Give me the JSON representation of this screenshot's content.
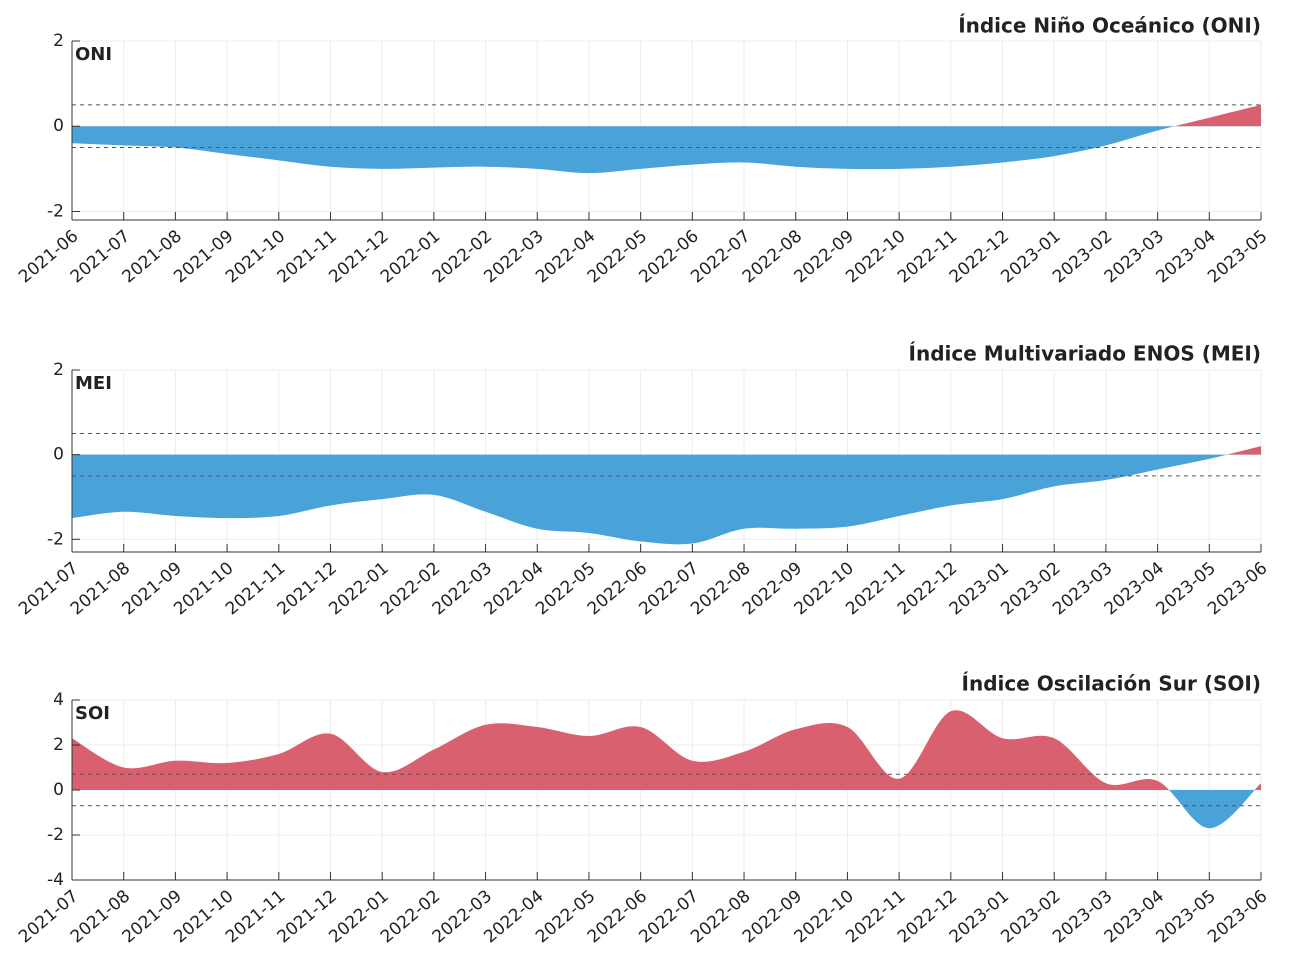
{
  "chart_data": [
    {
      "type": "area",
      "title": "Índice Niño Oceánico (ONI)",
      "label": "ONI",
      "categories": [
        "2021-06",
        "2021-07",
        "2021-08",
        "2021-09",
        "2021-10",
        "2021-11",
        "2021-12",
        "2022-01",
        "2022-02",
        "2022-03",
        "2022-04",
        "2022-05",
        "2022-06",
        "2022-07",
        "2022-08",
        "2022-09",
        "2022-10",
        "2022-11",
        "2022-12",
        "2023-01",
        "2023-02",
        "2023-03",
        "2023-04",
        "2023-05"
      ],
      "values": [
        -0.4,
        -0.45,
        -0.5,
        -0.65,
        -0.8,
        -0.95,
        -1.0,
        -0.97,
        -0.95,
        -1.0,
        -1.1,
        -1.0,
        -0.9,
        -0.85,
        -0.95,
        -1.0,
        -1.0,
        -0.95,
        -0.85,
        -0.7,
        -0.45,
        -0.1,
        0.2,
        0.5
      ],
      "ylim": [
        -2.2,
        2
      ],
      "yticks": [
        -2,
        0,
        2
      ],
      "thresholds": [
        0.5,
        -0.5
      ],
      "positive_color": "#d9606f",
      "negative_color": "#4aa3d8",
      "grid": true
    },
    {
      "type": "area",
      "title": "Índice Multivariado ENOS (MEI)",
      "label": "MEI",
      "categories": [
        "2021-07",
        "2021-08",
        "2021-09",
        "2021-10",
        "2021-11",
        "2021-12",
        "2022-01",
        "2022-02",
        "2022-03",
        "2022-04",
        "2022-05",
        "2022-06",
        "2022-07",
        "2022-08",
        "2022-09",
        "2022-10",
        "2022-11",
        "2022-12",
        "2023-01",
        "2023-02",
        "2023-03",
        "2023-04",
        "2023-05",
        "2023-06"
      ],
      "values": [
        -1.5,
        -1.35,
        -1.45,
        -1.5,
        -1.45,
        -1.2,
        -1.05,
        -0.95,
        -1.35,
        -1.75,
        -1.85,
        -2.05,
        -2.1,
        -1.75,
        -1.75,
        -1.7,
        -1.45,
        -1.2,
        -1.05,
        -0.75,
        -0.6,
        -0.35,
        -0.1,
        0.2
      ],
      "ylim": [
        -2.3,
        2
      ],
      "yticks": [
        -2,
        0,
        2
      ],
      "thresholds": [
        0.5,
        -0.5
      ],
      "positive_color": "#d9606f",
      "negative_color": "#4aa3d8",
      "grid": true
    },
    {
      "type": "area",
      "title": "Índice Oscilación Sur (SOI)",
      "label": "SOI",
      "categories": [
        "2021-07",
        "2021-08",
        "2021-09",
        "2021-10",
        "2021-11",
        "2021-12",
        "2022-01",
        "2022-02",
        "2022-03",
        "2022-04",
        "2022-05",
        "2022-06",
        "2022-07",
        "2022-08",
        "2022-09",
        "2022-10",
        "2022-11",
        "2022-12",
        "2023-01",
        "2023-02",
        "2023-03",
        "2023-04",
        "2023-05",
        "2023-06"
      ],
      "values": [
        2.3,
        1.0,
        1.3,
        1.2,
        1.6,
        2.5,
        0.8,
        1.8,
        2.9,
        2.8,
        2.4,
        2.8,
        1.3,
        1.7,
        2.7,
        2.8,
        0.5,
        3.5,
        2.3,
        2.3,
        0.3,
        0.4,
        -1.7,
        0.3
      ],
      "ylim": [
        -4,
        4
      ],
      "yticks": [
        -4,
        -2,
        0,
        2,
        4
      ],
      "thresholds": [
        0.7,
        -0.7
      ],
      "positive_color": "#d9606f",
      "negative_color": "#4aa3d8",
      "grid": true
    }
  ]
}
